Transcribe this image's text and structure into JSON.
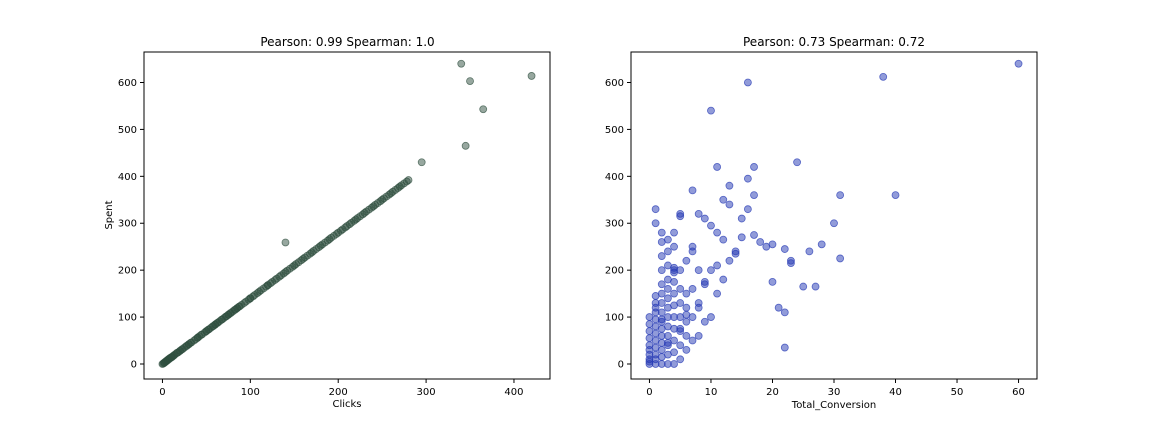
{
  "chart_data": [
    {
      "type": "scatter",
      "title": "Pearson: 0.99 Spearman: 1.0",
      "xlabel": "Clicks",
      "ylabel": "Spent",
      "xlim": [
        -21,
        441
      ],
      "ylim": [
        -32,
        665
      ],
      "xticks": [
        0,
        100,
        200,
        300,
        400
      ],
      "yticks": [
        0,
        100,
        200,
        300,
        400,
        500,
        600
      ],
      "grid": false,
      "color": "#2f4f3f",
      "alpha": 0.5,
      "series": [
        {
          "x": [
            0,
            1,
            2,
            3,
            4,
            5,
            6,
            7,
            8,
            9,
            10,
            12,
            14,
            16,
            18,
            20,
            22,
            25,
            28,
            30,
            33,
            36,
            40,
            42,
            45,
            48,
            50,
            53,
            55,
            58,
            60,
            62,
            65,
            68,
            70,
            72,
            75,
            78,
            80,
            82,
            85,
            88,
            90,
            95,
            100,
            105,
            110,
            115,
            120,
            125,
            130,
            135,
            140,
            145,
            150,
            155,
            160,
            165,
            170,
            175,
            180,
            185,
            190,
            195,
            200,
            205,
            210,
            215,
            220,
            225,
            230,
            235,
            240,
            245,
            250,
            255,
            260,
            265,
            270,
            275,
            280,
            295,
            340,
            350,
            345,
            365,
            420,
            2,
            4,
            6,
            8,
            11,
            13,
            17,
            23,
            27,
            32,
            38,
            44,
            52,
            57,
            63,
            67,
            73,
            77,
            83,
            87,
            93,
            98,
            103,
            108,
            112,
            118,
            123,
            128,
            133,
            138,
            142,
            148,
            152,
            158,
            162,
            168,
            172,
            178,
            182,
            188,
            192,
            198,
            203,
            208,
            213,
            218,
            222,
            228,
            232,
            238,
            242,
            248,
            252,
            258,
            262,
            268,
            272,
            278,
            140,
            120,
            100,
            85,
            75,
            60,
            50,
            40,
            30,
            20,
            10
          ],
          "y": [
            0,
            1,
            3,
            4,
            6,
            7,
            9,
            10,
            12,
            13,
            14,
            17,
            20,
            23,
            25,
            28,
            31,
            35,
            39,
            42,
            46,
            50,
            56,
            59,
            63,
            67,
            70,
            74,
            77,
            81,
            84,
            87,
            91,
            95,
            98,
            101,
            105,
            109,
            112,
            115,
            119,
            123,
            126,
            133,
            140,
            147,
            154,
            161,
            168,
            175,
            182,
            189,
            196,
            203,
            210,
            217,
            224,
            231,
            238,
            245,
            252,
            259,
            266,
            273,
            280,
            287,
            294,
            301,
            308,
            315,
            322,
            329,
            336,
            343,
            350,
            357,
            364,
            371,
            378,
            385,
            392,
            430,
            640,
            603,
            465,
            543,
            614,
            2,
            5,
            8,
            11,
            15,
            18,
            24,
            32,
            38,
            45,
            53,
            62,
            73,
            80,
            88,
            94,
            102,
            108,
            116,
            122,
            130,
            137,
            144,
            151,
            157,
            165,
            172,
            179,
            186,
            193,
            199,
            207,
            213,
            221,
            227,
            235,
            241,
            249,
            255,
            263,
            269,
            277,
            284,
            291,
            298,
            305,
            311,
            319,
            325,
            333,
            339,
            347,
            353,
            361,
            367,
            375,
            381,
            389,
            259,
            168,
            140,
            119,
            105,
            84,
            70,
            56,
            42,
            28,
            14
          ]
        }
      ]
    },
    {
      "type": "scatter",
      "title": "Pearson: 0.73 Spearman: 0.72",
      "xlabel": "Total_Conversion",
      "ylabel": "",
      "xlim": [
        -3,
        63
      ],
      "ylim": [
        -32,
        665
      ],
      "xticks": [
        0,
        10,
        20,
        30,
        40,
        50,
        60
      ],
      "yticks": [
        0,
        100,
        200,
        300,
        400,
        500,
        600
      ],
      "grid": false,
      "color": "#2438b4",
      "alpha": 0.5,
      "series": [
        {
          "x": [
            0,
            0,
            0,
            0,
            0,
            0,
            0,
            0,
            0,
            0,
            1,
            1,
            1,
            1,
            1,
            1,
            1,
            1,
            1,
            1,
            1,
            1,
            2,
            2,
            2,
            2,
            2,
            2,
            2,
            2,
            2,
            2,
            2,
            2,
            2,
            2,
            3,
            3,
            3,
            3,
            3,
            3,
            3,
            3,
            3,
            3,
            3,
            3,
            4,
            4,
            4,
            4,
            4,
            4,
            4,
            4,
            4,
            4,
            4,
            5,
            5,
            5,
            5,
            5,
            5,
            5,
            5,
            6,
            6,
            6,
            6,
            6,
            6,
            7,
            7,
            7,
            7,
            7,
            8,
            8,
            8,
            8,
            9,
            9,
            9,
            10,
            10,
            10,
            11,
            11,
            11,
            12,
            12,
            13,
            13,
            14,
            15,
            16,
            16,
            17,
            17,
            18,
            19,
            20,
            21,
            22,
            22,
            23,
            23,
            24,
            25,
            26,
            27,
            28,
            30,
            31,
            31,
            38,
            40,
            60,
            1,
            2,
            3,
            4,
            5,
            6,
            7,
            8,
            9,
            10,
            11,
            12,
            13,
            14,
            15,
            16,
            17,
            20,
            22,
            1,
            2,
            3,
            4,
            5
          ],
          "y": [
            0,
            5,
            10,
            20,
            30,
            40,
            55,
            70,
            85,
            100,
            0,
            10,
            20,
            35,
            50,
            65,
            80,
            95,
            110,
            130,
            300,
            330,
            0,
            15,
            30,
            45,
            60,
            75,
            90,
            110,
            130,
            150,
            170,
            200,
            230,
            260,
            0,
            20,
            40,
            60,
            80,
            100,
            120,
            140,
            160,
            180,
            210,
            240,
            0,
            25,
            50,
            75,
            100,
            125,
            150,
            175,
            200,
            250,
            280,
            10,
            40,
            70,
            100,
            130,
            160,
            200,
            320,
            30,
            60,
            90,
            120,
            150,
            220,
            50,
            100,
            160,
            250,
            370,
            60,
            120,
            200,
            320,
            90,
            170,
            310,
            100,
            200,
            540,
            150,
            280,
            420,
            180,
            350,
            220,
            380,
            240,
            310,
            330,
            600,
            360,
            420,
            260,
            250,
            255,
            120,
            110,
            35,
            215,
            220,
            430,
            165,
            240,
            165,
            255,
            300,
            225,
            360,
            612,
            360,
            640,
            145,
            95,
            45,
            195,
            75,
            105,
            240,
            130,
            175,
            295,
            210,
            265,
            340,
            235,
            270,
            395,
            275,
            175,
            245,
            120,
            280,
            265,
            205,
            315
          ]
        }
      ]
    }
  ]
}
